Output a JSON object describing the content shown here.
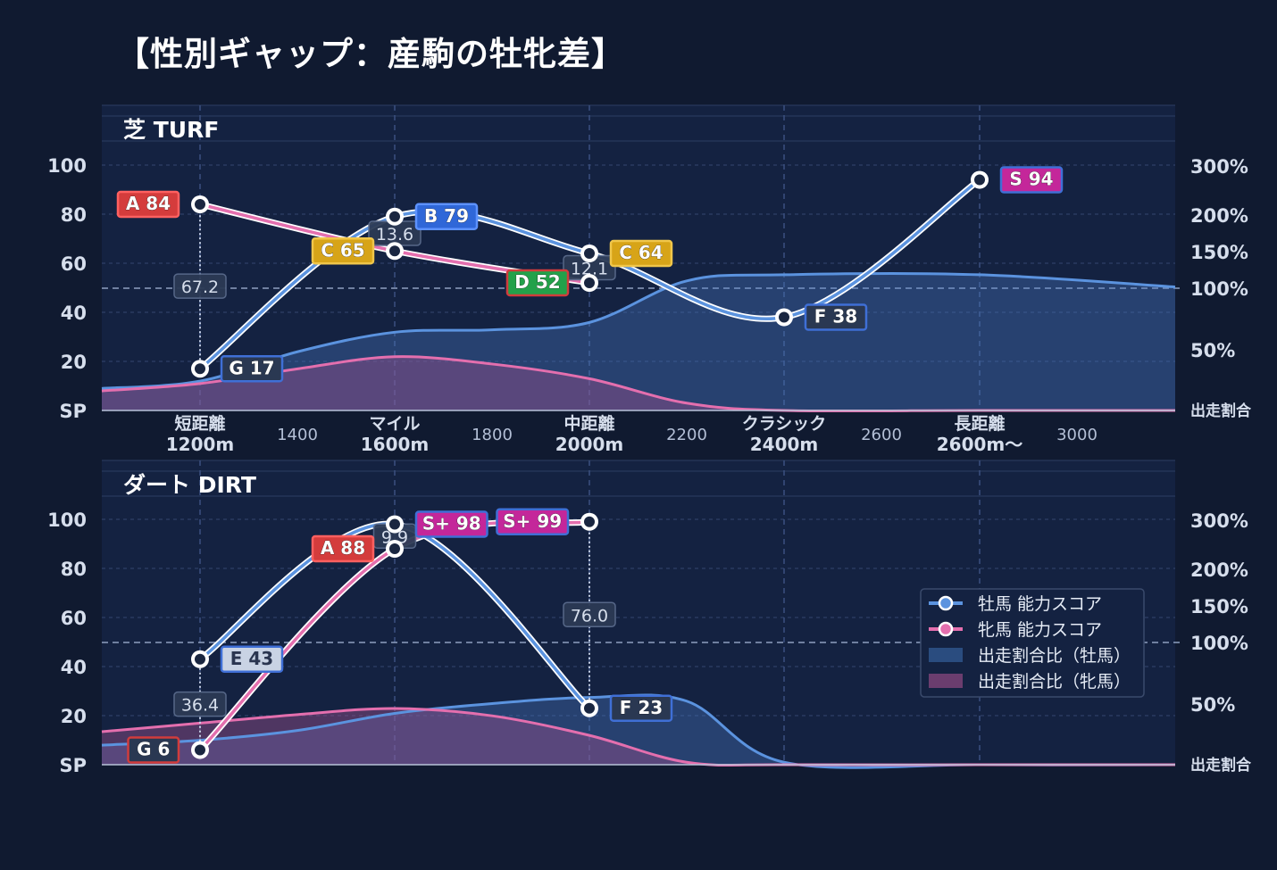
{
  "title": "【性別ギャップ：産駒の牡牝差】",
  "colors": {
    "background": "#101a30",
    "plot_bg": "#142241",
    "male": "#5b93df",
    "female": "#e46fae",
    "grid": "#33476f",
    "text": "#d6deec"
  },
  "legend": {
    "items": [
      {
        "label": "牡馬 能力スコア",
        "kind": "line-male"
      },
      {
        "label": "牝馬 能力スコア",
        "kind": "line-female"
      },
      {
        "label": "出走割合比（牡馬）",
        "kind": "area-male"
      },
      {
        "label": "出走割合比（牝馬）",
        "kind": "area-female"
      }
    ]
  },
  "chart_data": [
    {
      "type": "line",
      "title": "芝 TURF",
      "y_ticks": [
        "SP",
        "20",
        "40",
        "60",
        "80",
        "100"
      ],
      "y_right_ticks": [
        "出走割合",
        "50%",
        "100%",
        "150%",
        "200%",
        "300%"
      ],
      "x_categories": [
        {
          "line1": "短距離",
          "line2": "1200m"
        },
        {
          "line1": "マイル",
          "line2": "1600m"
        },
        {
          "line1": "中距離",
          "line2": "2000m"
        },
        {
          "line1": "クラシック",
          "line2": "2400m"
        },
        {
          "line1": "長距離",
          "line2": "2600m〜"
        }
      ],
      "x_minor_labels": [
        "1400",
        "1800",
        "2200",
        "2600",
        "3000"
      ],
      "series": [
        {
          "name": "牡馬 能力スコア",
          "points": [
            {
              "x": "1200m",
              "score": 17,
              "grade": "G 17"
            },
            {
              "x": "1600m",
              "score": 79,
              "grade": "B 79"
            },
            {
              "x": "2000m",
              "score": 64,
              "grade": "C 64"
            },
            {
              "x": "2400m",
              "score": 38,
              "grade": "F 38"
            },
            {
              "x": "2600m〜",
              "score": 94,
              "grade": "S 94"
            }
          ]
        },
        {
          "name": "牝馬 能力スコア",
          "points": [
            {
              "x": "1200m",
              "score": 84,
              "grade": "A 84"
            },
            {
              "x": "1600m",
              "score": 65,
              "grade": "C 65"
            },
            {
              "x": "2000m",
              "score": 52,
              "grade": "D 52"
            }
          ]
        }
      ],
      "gap_labels": [
        "67.2",
        "13.6",
        "12.1"
      ],
      "share_area": {
        "male_right_axis": [
          18,
          24,
          48,
          64,
          66,
          72,
          106,
          111,
          111,
          101
        ],
        "female_right_axis": [
          16,
          22,
          34,
          44,
          38,
          26,
          6,
          0,
          0,
          0
        ]
      }
    },
    {
      "type": "line",
      "title": "ダート DIRT",
      "y_ticks": [
        "SP",
        "20",
        "40",
        "60",
        "80",
        "100"
      ],
      "y_right_ticks": [
        "出走割合",
        "50%",
        "100%",
        "150%",
        "200%",
        "300%"
      ],
      "series": [
        {
          "name": "牡馬 能力スコア",
          "points": [
            {
              "x": "1200m",
              "score": 43,
              "grade": "E 43"
            },
            {
              "x": "1600m",
              "score": 98,
              "grade": "S+ 98"
            },
            {
              "x": "2000m",
              "score": 23,
              "grade": "F 23"
            }
          ]
        },
        {
          "name": "牝馬 能力スコア",
          "points": [
            {
              "x": "1200m",
              "score": 6,
              "grade": "G 6"
            },
            {
              "x": "1600m",
              "score": 88,
              "grade": "A 88"
            },
            {
              "x": "2000m",
              "score": 99,
              "grade": "S+ 99"
            }
          ]
        }
      ],
      "gap_labels": [
        "36.4",
        "9.9",
        "76.0"
      ],
      "share_area": {
        "male_right_axis": [
          16,
          20,
          28,
          42,
          50,
          55,
          52,
          2,
          0,
          0
        ],
        "female_right_axis": [
          27,
          34,
          41,
          46,
          40,
          24,
          2,
          0,
          0,
          0
        ]
      }
    }
  ]
}
